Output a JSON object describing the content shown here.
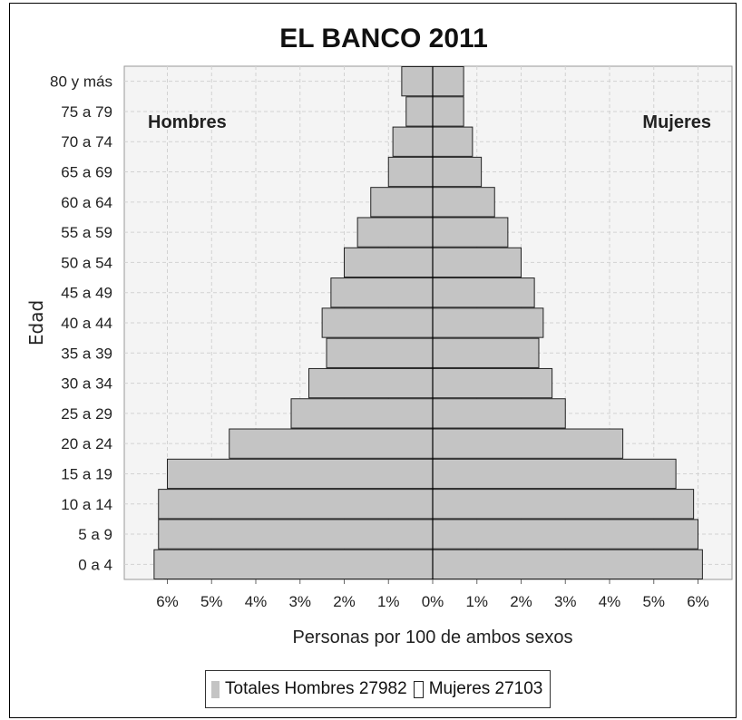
{
  "chart_data": {
    "type": "bar",
    "title": "EL BANCO 2011",
    "xlabel": "Personas por 100 de ambos sexos",
    "ylabel": "Edad",
    "left_label": "Hombres",
    "right_label": "Mujeres",
    "categories": [
      "0 a 4",
      "5 a 9",
      "10 a 14",
      "15 a 19",
      "20 a 24",
      "25 a 29",
      "30 a 34",
      "35 a 39",
      "40 a 44",
      "45 a 49",
      "50 a 54",
      "55 a 59",
      "60 a 64",
      "65 a 69",
      "70 a 74",
      "75 a 79",
      "80 y más"
    ],
    "series": [
      {
        "name": "Hombres",
        "values": [
          6.3,
          6.2,
          6.2,
          6.0,
          4.6,
          3.2,
          2.8,
          2.4,
          2.5,
          2.3,
          2.0,
          1.7,
          1.4,
          1.0,
          0.9,
          0.6,
          0.7
        ]
      },
      {
        "name": "Mujeres",
        "values": [
          6.1,
          6.0,
          5.9,
          5.5,
          4.3,
          3.0,
          2.7,
          2.4,
          2.5,
          2.3,
          2.0,
          1.7,
          1.4,
          1.1,
          0.9,
          0.7,
          0.7
        ]
      }
    ],
    "xlim": [
      -6.5,
      6.5
    ],
    "xticks": [
      -6,
      -5,
      -4,
      -3,
      -2,
      -1,
      0,
      1,
      2,
      3,
      4,
      5,
      6
    ],
    "xtick_labels": [
      "6%",
      "5%",
      "4%",
      "3%",
      "2%",
      "1%",
      "0%",
      "1%",
      "2%",
      "3%",
      "4%",
      "5%",
      "6%"
    ],
    "grid": true,
    "legend": {
      "position": "bottom",
      "total_label": "Totales",
      "entries": [
        {
          "text": "Hombres 27982",
          "marker": "filled"
        },
        {
          "text": "Mujeres 27103",
          "marker": "open"
        }
      ]
    },
    "colors": {
      "bar_fill": "#c4c4c4",
      "bar_border": "#222222",
      "plot_bg": "#f4f4f4",
      "grid": "#d2d2d2"
    }
  }
}
